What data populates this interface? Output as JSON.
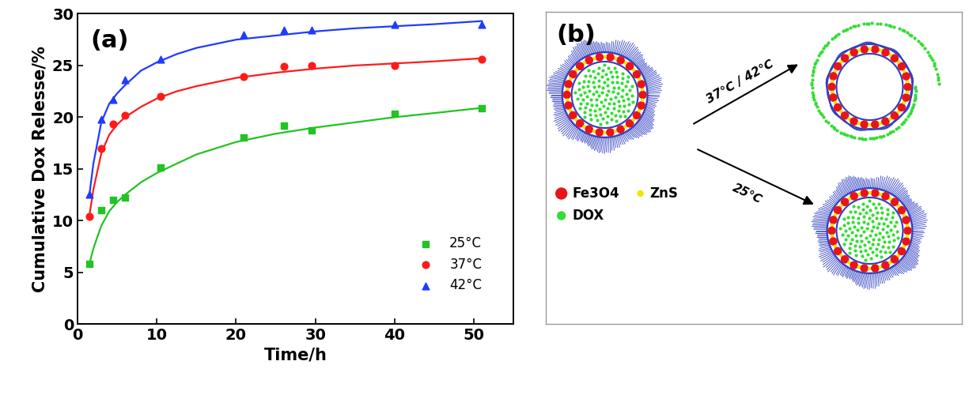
{
  "chart_data": {
    "type": "scatter",
    "title": "(a)",
    "x_label": "Time/h",
    "y_label": "Cumulative Dox Relesse/%",
    "xlim": [
      0,
      55
    ],
    "xticks": [
      0,
      10,
      20,
      30,
      40,
      50
    ],
    "ylim": [
      0,
      30
    ],
    "yticks": [
      0,
      5,
      10,
      15,
      20,
      25,
      30
    ],
    "legend": "lower right",
    "series": [
      {
        "name": "25°C",
        "color": "#22c322",
        "marker": "square",
        "line_style": "solid",
        "x": [
          1.5,
          3,
          4.5,
          6,
          10.5,
          21,
          26,
          29.5,
          40,
          51
        ],
        "values": [
          5.8,
          11.0,
          12.0,
          12.2,
          15.1,
          18.0,
          19.2,
          18.7,
          20.3,
          20.9
        ],
        "fit": {
          "x": [
            1.5,
            2,
            3,
            4,
            5,
            6,
            8,
            10,
            12.5,
            15,
            20,
            25,
            30,
            35,
            40,
            45,
            51
          ],
          "values": [
            5.8,
            7.3,
            9.5,
            10.9,
            11.8,
            12.5,
            13.7,
            14.6,
            15.5,
            16.4,
            17.6,
            18.4,
            19.0,
            19.5,
            20.0,
            20.4,
            20.9
          ]
        }
      },
      {
        "name": "37°C",
        "color": "#ff1a1a",
        "marker": "circle",
        "line_style": "solid",
        "x": [
          1.5,
          3,
          4.5,
          6,
          10.5,
          21,
          26,
          29.5,
          40,
          51
        ],
        "values": [
          10.4,
          17.0,
          19.3,
          20.2,
          22.0,
          23.9,
          24.9,
          25.0,
          25.0,
          25.6
        ],
        "fit": {
          "x": [
            1.5,
            2,
            3,
            4,
            5,
            6,
            8,
            10,
            12.5,
            15,
            20,
            25,
            30,
            35,
            40,
            45,
            51
          ],
          "values": [
            10.5,
            13.0,
            16.5,
            18.3,
            19.3,
            20.0,
            21.0,
            21.8,
            22.5,
            23.0,
            23.8,
            24.3,
            24.7,
            25.0,
            25.2,
            25.4,
            25.7
          ]
        }
      },
      {
        "name": "42°C",
        "color": "#1f3bff",
        "marker": "triangle",
        "line_style": "solid",
        "x": [
          1.5,
          3,
          4.5,
          6,
          10.5,
          21,
          26,
          29.5,
          40,
          51
        ],
        "values": [
          12.5,
          19.8,
          21.7,
          23.6,
          25.6,
          28.0,
          28.4,
          28.4,
          29.0,
          29.0
        ],
        "fit": {
          "x": [
            1.5,
            2,
            3,
            4,
            5,
            6,
            8,
            10,
            12.5,
            15,
            20,
            25,
            30,
            35,
            40,
            45,
            51
          ],
          "values": [
            12.5,
            15.5,
            19.5,
            21.3,
            22.3,
            23.1,
            24.5,
            25.3,
            26.1,
            26.7,
            27.5,
            27.9,
            28.3,
            28.6,
            28.8,
            29.0,
            29.3
          ]
        }
      }
    ]
  },
  "diagram": {
    "label": "(b)",
    "arrows": [
      {
        "label": "37℃ / 42℃"
      },
      {
        "label": "25℃"
      }
    ],
    "legend": [
      {
        "label": "Fe3O4",
        "color": "#e8141a"
      },
      {
        "label": "ZnS",
        "color": "#f2e600"
      },
      {
        "label": "DOX",
        "color": "#33dd33"
      }
    ]
  }
}
